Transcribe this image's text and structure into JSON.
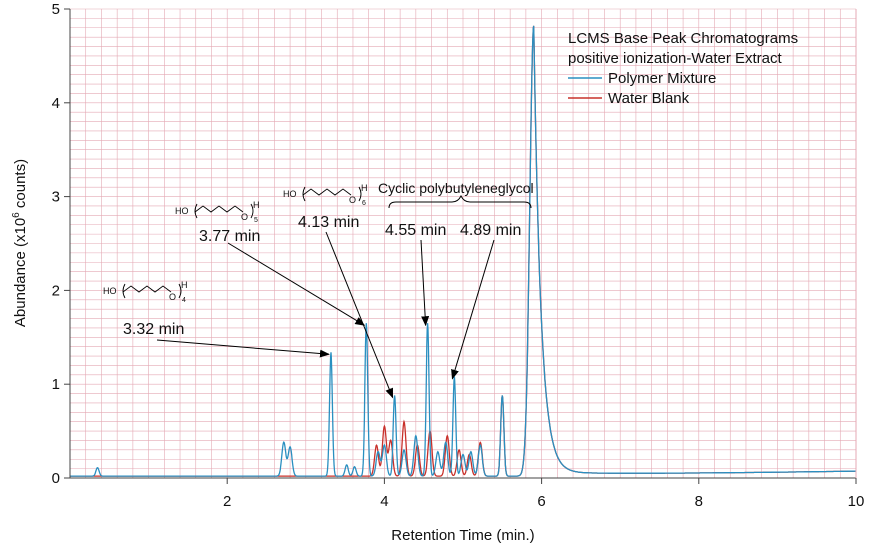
{
  "chart_data": {
    "type": "line",
    "title": "LCMS Base Peak Chromatograms",
    "subtitle": "positive ionization-Water Extract",
    "xlabel": "Retention Time (min.)",
    "ylabel_main": "Abundance (x10",
    "ylabel_exp": "6",
    "ylabel_tail": " counts)",
    "xlim": [
      0,
      10
    ],
    "ylim": [
      0,
      5
    ],
    "x_ticks": [
      2,
      4,
      6,
      8,
      10
    ],
    "y_ticks": [
      0,
      1,
      2,
      3,
      4,
      5
    ],
    "grid": true,
    "legend_position": "top-right",
    "colors": {
      "polymer": "#2a8fc0",
      "blank": "#c8302a",
      "grid": "#e4a9b4",
      "annotation": "#000000"
    },
    "series": [
      {
        "name": "Polymer Mixture",
        "baseline": 0.02,
        "peaks": [
          [
            0.35,
            0.11,
            0.02
          ],
          [
            2.72,
            0.38,
            0.025
          ],
          [
            2.8,
            0.33,
            0.025
          ],
          [
            3.32,
            1.34,
            0.018
          ],
          [
            3.52,
            0.14,
            0.02
          ],
          [
            3.62,
            0.12,
            0.02
          ],
          [
            3.77,
            1.65,
            0.018
          ],
          [
            3.92,
            0.28,
            0.025
          ],
          [
            4.0,
            0.35,
            0.025
          ],
          [
            4.13,
            0.88,
            0.018
          ],
          [
            4.25,
            0.3,
            0.025
          ],
          [
            4.4,
            0.45,
            0.025
          ],
          [
            4.55,
            1.65,
            0.018
          ],
          [
            4.68,
            0.28,
            0.025
          ],
          [
            4.78,
            0.38,
            0.025
          ],
          [
            4.89,
            1.08,
            0.018
          ],
          [
            5.0,
            0.25,
            0.025
          ],
          [
            5.1,
            0.28,
            0.025
          ],
          [
            5.22,
            0.35,
            0.025
          ],
          [
            5.5,
            0.88,
            0.02
          ],
          [
            5.9,
            4.82,
            0.05
          ]
        ]
      },
      {
        "name": "Water Blank",
        "baseline": 0.02,
        "peaks": [
          [
            3.9,
            0.35,
            0.025
          ],
          [
            4.0,
            0.55,
            0.025
          ],
          [
            4.08,
            0.4,
            0.025
          ],
          [
            4.25,
            0.6,
            0.025
          ],
          [
            4.42,
            0.35,
            0.025
          ],
          [
            4.58,
            0.5,
            0.025
          ],
          [
            4.8,
            0.45,
            0.025
          ],
          [
            4.95,
            0.3,
            0.025
          ],
          [
            5.08,
            0.25,
            0.025
          ],
          [
            5.22,
            0.38,
            0.025
          ],
          [
            5.5,
            0.88,
            0.02
          ],
          [
            5.9,
            4.82,
            0.05
          ]
        ]
      }
    ],
    "annotations": [
      {
        "label": "3.32 min",
        "target": [
          3.32,
          1.34
        ],
        "struct_sub": "4"
      },
      {
        "label": "3.77 min",
        "target": [
          3.77,
          1.65
        ],
        "struct_sub": "5"
      },
      {
        "label": "4.13 min",
        "target": [
          4.13,
          0.88
        ],
        "struct_sub": "6"
      },
      {
        "label": "4.55 min",
        "target": [
          4.55,
          1.65
        ]
      },
      {
        "label": "4.89 min",
        "target": [
          4.89,
          1.08
        ]
      }
    ],
    "group_label": "Cyclic polybutyleneglycol",
    "structure_text": {
      "ho": "HO",
      "o": "O",
      "h": "H"
    }
  }
}
